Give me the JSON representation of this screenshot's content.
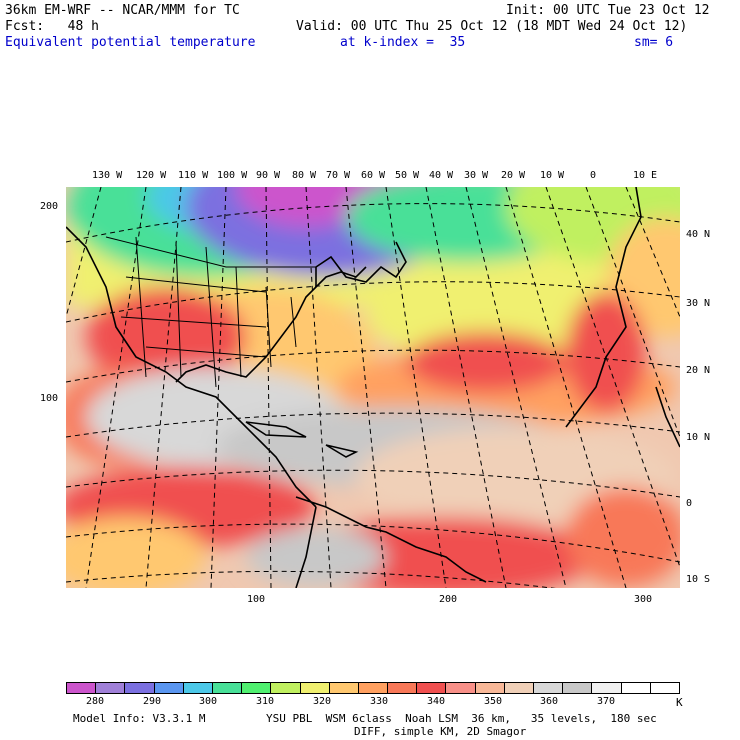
{
  "header": {
    "model": "36km EM-WRF -- NCAR/MMM for TC",
    "init": "Init: 00 UTC Tue 23 Oct 12",
    "fcst": "Fcst:   48 h",
    "valid": "Valid: 00 UTC Thu 25 Oct 12 (18 MDT Wed 24 Oct 12)",
    "field": "Equivalent potential temperature",
    "level": "at k-index =  35",
    "smooth": "sm= 6"
  },
  "lon_labels": [
    "130 W",
    "120 W",
    "110 W",
    "100 W",
    "90 W",
    "80 W",
    "70 W",
    "60 W",
    "50 W",
    "40 W",
    "30 W",
    "20 W",
    "10 W",
    "0",
    "10 E"
  ],
  "lat_labels": [
    "40 N",
    "30 N",
    "20 N",
    "10 N",
    "0",
    "10 S"
  ],
  "grid_y_labels": [
    "200",
    "100"
  ],
  "grid_x_labels": [
    "100",
    "200",
    "300"
  ],
  "colorbar": {
    "colors": [
      "#cc55cc",
      "#a080d8",
      "#7b70e0",
      "#5a96f0",
      "#4cc8e8",
      "#48e098",
      "#50f070",
      "#c0f060",
      "#f0f070",
      "#ffc870",
      "#ffa060",
      "#f87858",
      "#f05050",
      "#f89088",
      "#f8b898",
      "#f0d0b8",
      "#d8d8d8",
      "#c8c8c8",
      "#f0f0f0",
      "#ffffff",
      "#ffffff"
    ],
    "labels": [
      "280",
      "290",
      "300",
      "310",
      "320",
      "330",
      "340",
      "350",
      "360",
      "370"
    ],
    "unit": "K"
  },
  "footer": {
    "info": "Model Info: V3.3.1 M",
    "physics": "YSU PBL  WSM 6class  Noah LSM  36 km,   35 levels,  180 sec",
    "diff": "DIFF, simple KM, 2D Smagor"
  }
}
